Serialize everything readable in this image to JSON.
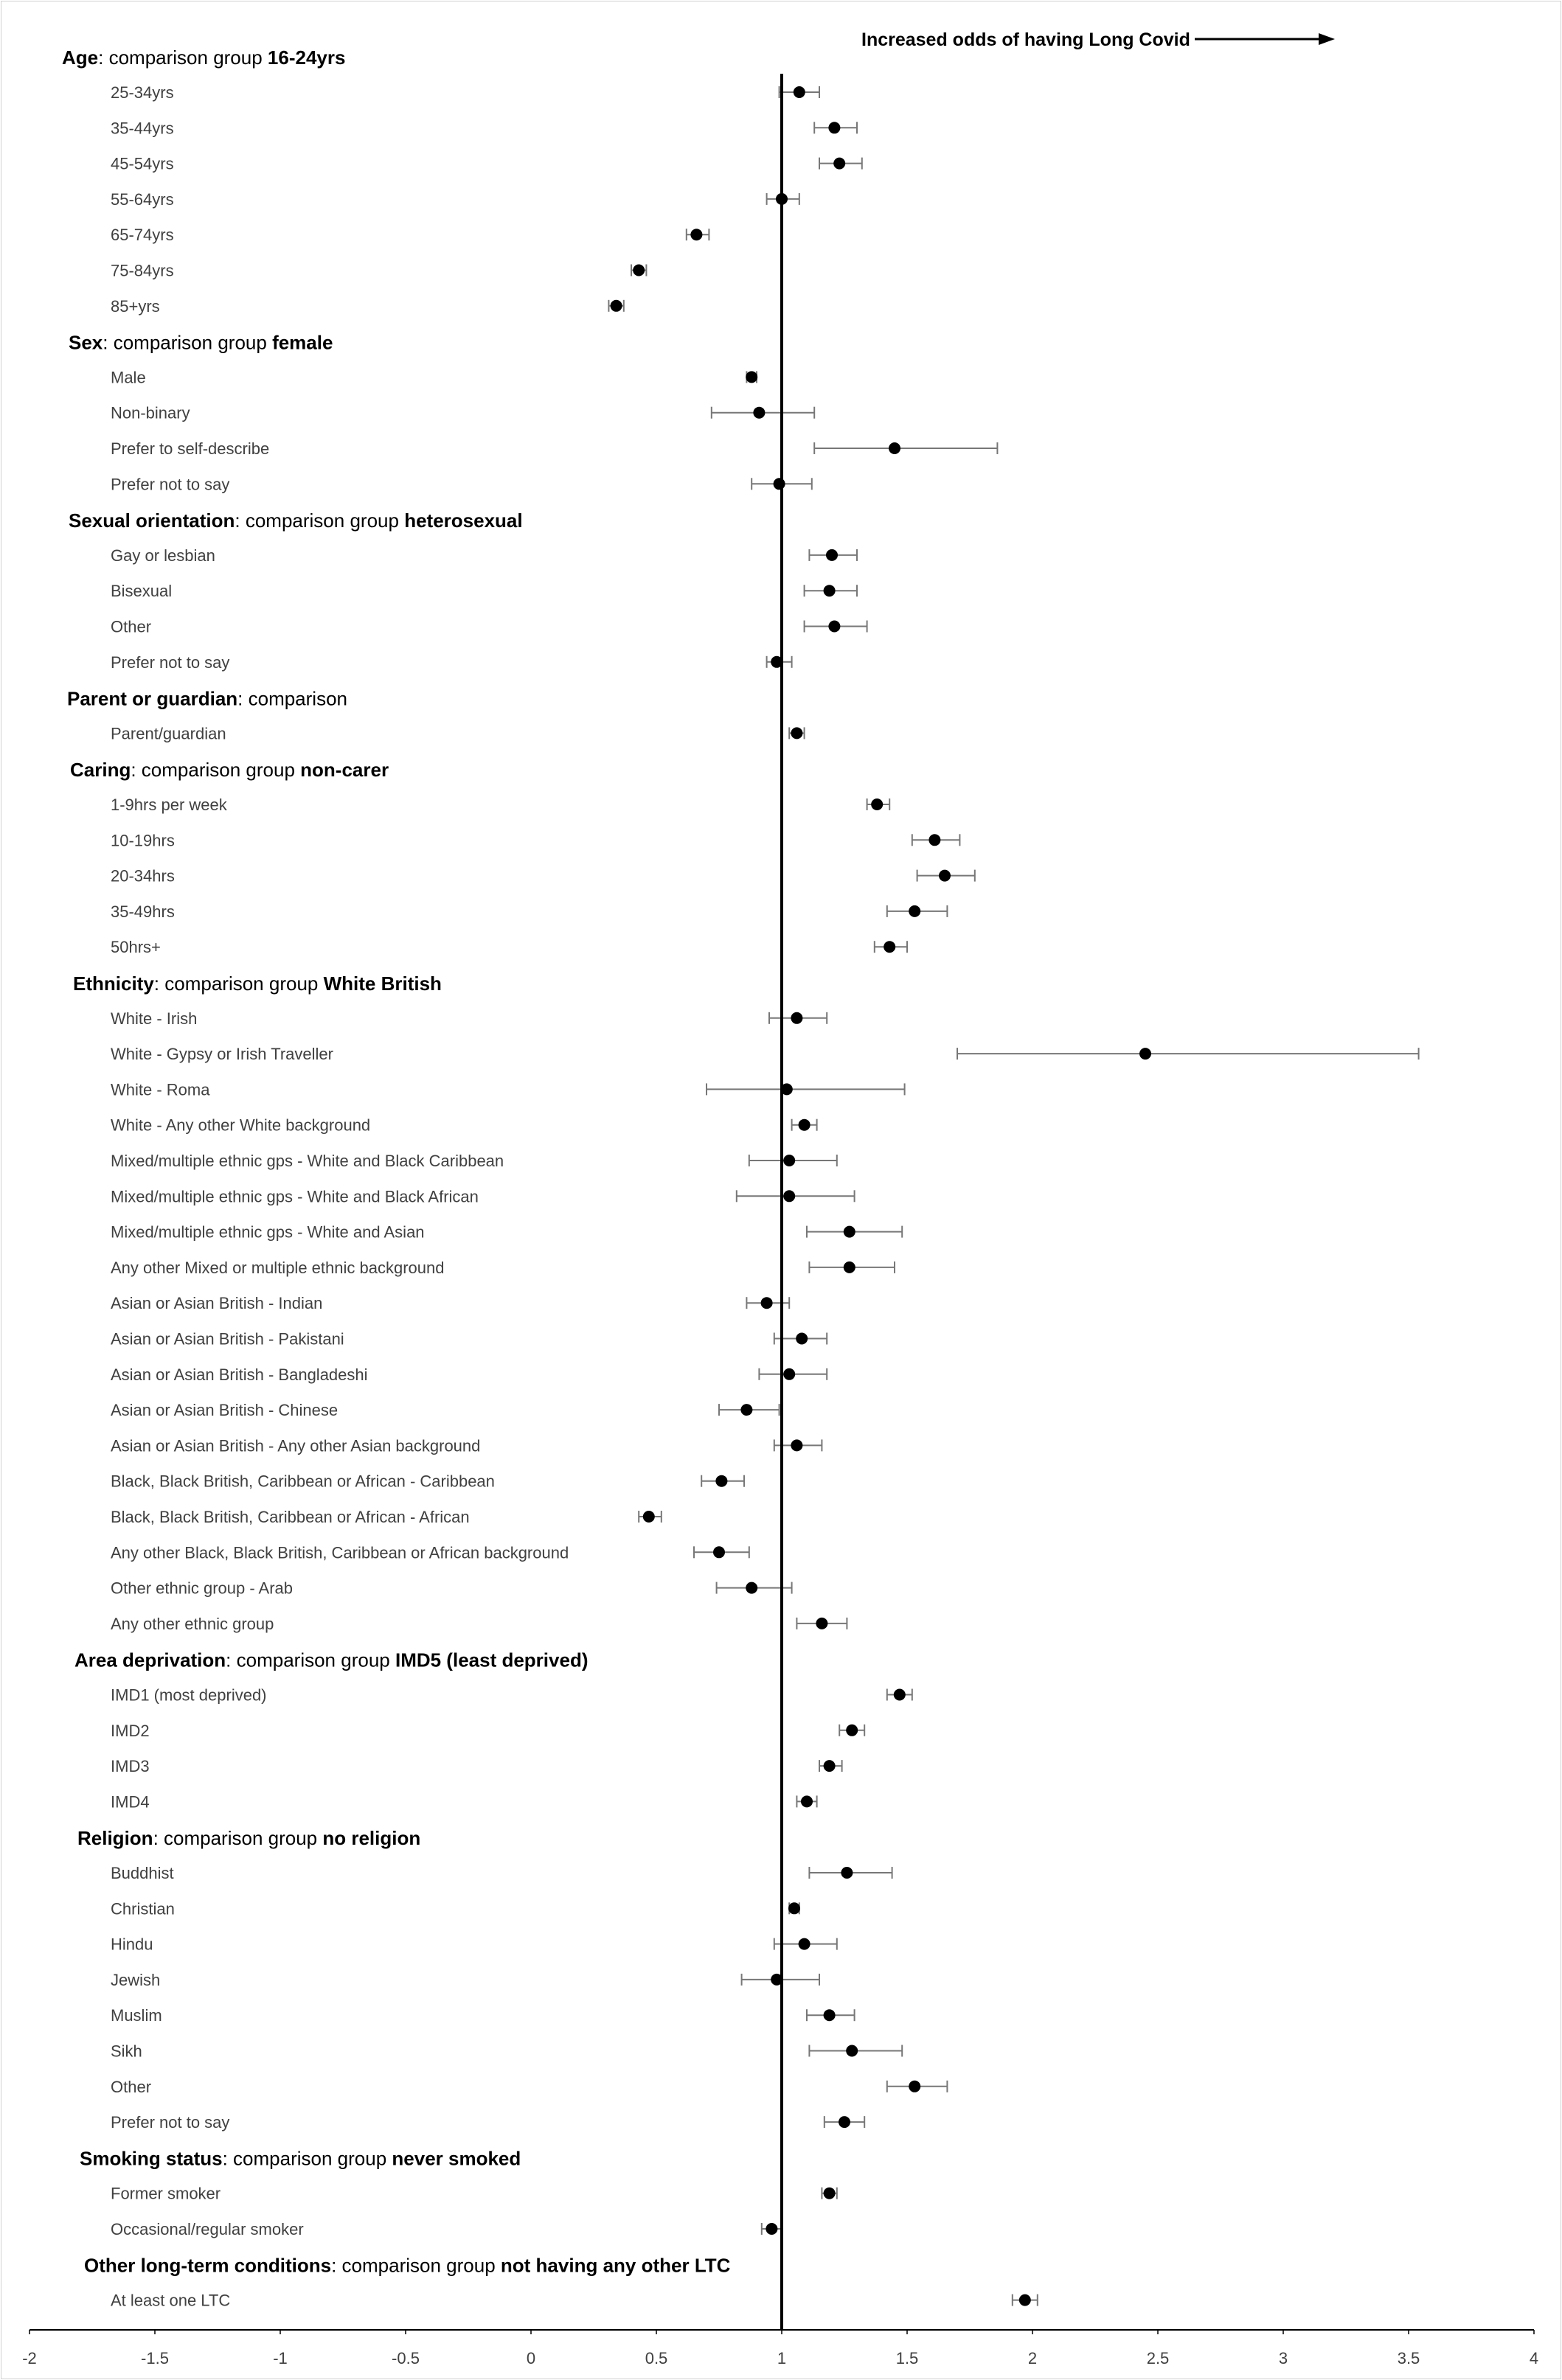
{
  "chart_data": {
    "type": "scatter",
    "subtype": "forest-plot",
    "annotation": "Increased odds of having Long Covid",
    "reference_line": 1,
    "xlim": [
      -2,
      4
    ],
    "xticks": [
      -2,
      -1.5,
      -1,
      -0.5,
      0,
      0.5,
      1,
      1.5,
      2,
      2.5,
      3,
      3.5,
      4
    ],
    "xtick_labels": [
      "-2",
      "-1.5",
      "-1",
      "-0.5",
      "0",
      "0.5",
      "1",
      "1.5",
      "2",
      "2.5",
      "3",
      "3.5",
      "4"
    ],
    "groups": [
      {
        "heading_plain": "Age",
        "heading_mid": ": comparison group ",
        "heading_bold": "16-24yrs",
        "rows": [
          {
            "label": "25-34yrs",
            "value": 1.07,
            "lo": 0.99,
            "hi": 1.15
          },
          {
            "label": "35-44yrs",
            "value": 1.21,
            "lo": 1.13,
            "hi": 1.3
          },
          {
            "label": "45-54yrs",
            "value": 1.23,
            "lo": 1.15,
            "hi": 1.32
          },
          {
            "label": "55-64yrs",
            "value": 1.0,
            "lo": 0.94,
            "hi": 1.07
          },
          {
            "label": "65-74yrs",
            "value": 0.66,
            "lo": 0.62,
            "hi": 0.71
          },
          {
            "label": "75-84yrs",
            "value": 0.43,
            "lo": 0.4,
            "hi": 0.46
          },
          {
            "label": "85+yrs",
            "value": 0.34,
            "lo": 0.31,
            "hi": 0.37
          }
        ]
      },
      {
        "heading_plain": "Sex",
        "heading_mid": ": comparison group ",
        "heading_bold": "female",
        "rows": [
          {
            "label": "Male",
            "value": 0.88,
            "lo": 0.86,
            "hi": 0.9
          },
          {
            "label": "Non-binary",
            "value": 0.91,
            "lo": 0.72,
            "hi": 1.13
          },
          {
            "label": "Prefer to self-describe",
            "value": 1.45,
            "lo": 1.13,
            "hi": 1.86
          },
          {
            "label": "Prefer not to say",
            "value": 0.99,
            "lo": 0.88,
            "hi": 1.12
          }
        ]
      },
      {
        "heading_plain": "Sexual orientation",
        "heading_mid": ": comparison group ",
        "heading_bold": "heterosexual",
        "rows": [
          {
            "label": "Gay or lesbian",
            "value": 1.2,
            "lo": 1.11,
            "hi": 1.3
          },
          {
            "label": "Bisexual",
            "value": 1.19,
            "lo": 1.09,
            "hi": 1.3
          },
          {
            "label": "Other",
            "value": 1.21,
            "lo": 1.09,
            "hi": 1.34
          },
          {
            "label": "Prefer not to say",
            "value": 0.98,
            "lo": 0.94,
            "hi": 1.04
          }
        ]
      },
      {
        "heading_plain": "Parent or guardian",
        "heading_mid": ": comparison",
        "heading_bold": "",
        "rows": [
          {
            "label": "Parent/guardian",
            "value": 1.06,
            "lo": 1.03,
            "hi": 1.09
          }
        ]
      },
      {
        "heading_plain": "Caring",
        "heading_mid": ": comparison group ",
        "heading_bold": "non-carer",
        "rows": [
          {
            "label": "1-9hrs per week",
            "value": 1.38,
            "lo": 1.34,
            "hi": 1.43
          },
          {
            "label": "10-19hrs",
            "value": 1.61,
            "lo": 1.52,
            "hi": 1.71
          },
          {
            "label": "20-34hrs",
            "value": 1.65,
            "lo": 1.54,
            "hi": 1.77
          },
          {
            "label": "35-49hrs",
            "value": 1.53,
            "lo": 1.42,
            "hi": 1.66
          },
          {
            "label": "50hrs+",
            "value": 1.43,
            "lo": 1.37,
            "hi": 1.5
          }
        ]
      },
      {
        "heading_plain": "Ethnicity",
        "heading_mid": ": comparison group ",
        "heading_bold": "White British",
        "rows": [
          {
            "label": "White - Irish",
            "value": 1.06,
            "lo": 0.95,
            "hi": 1.18
          },
          {
            "label": "White - Gypsy or Irish Traveller",
            "value": 2.45,
            "lo": 1.7,
            "hi": 3.54
          },
          {
            "label": "White - Roma",
            "value": 1.02,
            "lo": 0.7,
            "hi": 1.49
          },
          {
            "label": "White - Any other White background",
            "value": 1.09,
            "lo": 1.04,
            "hi": 1.14
          },
          {
            "label": "Mixed/multiple ethnic gps - White and Black Caribbean",
            "value": 1.03,
            "lo": 0.87,
            "hi": 1.22
          },
          {
            "label": "Mixed/multiple ethnic gps - White and Black African",
            "value": 1.03,
            "lo": 0.82,
            "hi": 1.29
          },
          {
            "label": "Mixed/multiple ethnic gps - White and Asian",
            "value": 1.27,
            "lo": 1.1,
            "hi": 1.48
          },
          {
            "label": "Any other Mixed or multiple ethnic background",
            "value": 1.27,
            "lo": 1.11,
            "hi": 1.45
          },
          {
            "label": "Asian or Asian British - Indian",
            "value": 0.94,
            "lo": 0.86,
            "hi": 1.03
          },
          {
            "label": "Asian or Asian British - Pakistani",
            "value": 1.08,
            "lo": 0.97,
            "hi": 1.18
          },
          {
            "label": "Asian or Asian British - Bangladeshi",
            "value": 1.03,
            "lo": 0.91,
            "hi": 1.18
          },
          {
            "label": "Asian or Asian British - Chinese",
            "value": 0.86,
            "lo": 0.75,
            "hi": 0.99
          },
          {
            "label": "Asian or Asian British - Any other Asian background",
            "value": 1.06,
            "lo": 0.97,
            "hi": 1.16
          },
          {
            "label": "Black, Black British, Caribbean or African - Caribbean",
            "value": 0.76,
            "lo": 0.68,
            "hi": 0.85
          },
          {
            "label": "Black, Black British, Caribbean or African - African",
            "value": 0.47,
            "lo": 0.43,
            "hi": 0.52
          },
          {
            "label": "Any other Black, Black British, Caribbean or African background",
            "value": 0.75,
            "lo": 0.65,
            "hi": 0.87
          },
          {
            "label": "Other ethnic group - Arab",
            "value": 0.88,
            "lo": 0.74,
            "hi": 1.04
          },
          {
            "label": "Any other ethnic group",
            "value": 1.16,
            "lo": 1.06,
            "hi": 1.26
          }
        ]
      },
      {
        "heading_plain": "Area deprivation",
        "heading_mid": ": comparison group ",
        "heading_bold": "IMD5 (least deprived)",
        "rows": [
          {
            "label": "IMD1 (most deprived)",
            "value": 1.47,
            "lo": 1.42,
            "hi": 1.52
          },
          {
            "label": "IMD2",
            "value": 1.28,
            "lo": 1.23,
            "hi": 1.33
          },
          {
            "label": "IMD3",
            "value": 1.19,
            "lo": 1.15,
            "hi": 1.24
          },
          {
            "label": "IMD4",
            "value": 1.1,
            "lo": 1.06,
            "hi": 1.14
          }
        ]
      },
      {
        "heading_plain": "Religion",
        "heading_mid": ": comparison group ",
        "heading_bold": "no religion",
        "rows": [
          {
            "label": "Buddhist",
            "value": 1.26,
            "lo": 1.11,
            "hi": 1.44
          },
          {
            "label": "Christian",
            "value": 1.05,
            "lo": 1.03,
            "hi": 1.07
          },
          {
            "label": "Hindu",
            "value": 1.09,
            "lo": 0.97,
            "hi": 1.22
          },
          {
            "label": "Jewish",
            "value": 0.98,
            "lo": 0.84,
            "hi": 1.15
          },
          {
            "label": "Muslim",
            "value": 1.19,
            "lo": 1.1,
            "hi": 1.29
          },
          {
            "label": "Sikh",
            "value": 1.28,
            "lo": 1.11,
            "hi": 1.48
          },
          {
            "label": "Other",
            "value": 1.53,
            "lo": 1.42,
            "hi": 1.66
          },
          {
            "label": "Prefer not to say",
            "value": 1.25,
            "lo": 1.17,
            "hi": 1.33
          }
        ]
      },
      {
        "heading_plain": "Smoking status",
        "heading_mid": ": comparison group ",
        "heading_bold": "never smoked",
        "rows": [
          {
            "label": "Former smoker",
            "value": 1.19,
            "lo": 1.16,
            "hi": 1.22
          },
          {
            "label": "Occasional/regular smoker",
            "value": 0.96,
            "lo": 0.92,
            "hi": 1.0
          }
        ]
      },
      {
        "heading_plain": "Other long-term conditions",
        "heading_mid": ": comparison group ",
        "heading_bold": "not having any other LTC",
        "rows": [
          {
            "label": "At least one LTC",
            "value": 1.97,
            "lo": 1.92,
            "hi": 2.02
          }
        ]
      }
    ]
  }
}
